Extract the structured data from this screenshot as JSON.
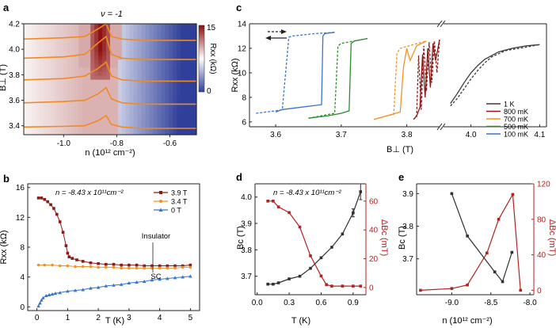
{
  "colors": {
    "axis": "#222222",
    "red_axis": "#b22222",
    "orange_trace": "#f08a24",
    "heat_low": "#2f3f9a",
    "heat_mid": "#ffffff",
    "heat_high": "#8b0d0d",
    "c_1K": "#3a3a3a",
    "c_800mK": "#8b1a1a",
    "c_700mK": "#f39223",
    "c_500mK": "#2e8b2e",
    "c_100mK": "#3a74c9",
    "b_3_9T": "#8b1a1a",
    "b_3_4T": "#f39223",
    "b_0T": "#3a74c9",
    "d_black": "#303030",
    "d_red": "#b22222"
  },
  "chart_data": [
    {
      "id": "a",
      "panel_label": "a",
      "type": "heatmap",
      "title": "ν = -1",
      "xlabel": "n (10¹² cm⁻²)",
      "ylabel": "B⊥ (T)",
      "xlim": [
        -1.15,
        -0.5
      ],
      "ylim": [
        3.33,
        4.2
      ],
      "xticks": [
        "-1.0",
        "-0.8",
        "-0.6"
      ],
      "xtick_values": [
        -1.0,
        -0.8,
        -0.6
      ],
      "yticks": [
        "3.4",
        "3.6",
        "3.8",
        "4.0",
        "4.2"
      ],
      "ytick_values": [
        3.4,
        3.6,
        3.8,
        4.0,
        4.2
      ],
      "colorbar": {
        "label": "Rxx (kΩ)",
        "min_label": "0",
        "max_label": "15",
        "range": [
          0,
          15
        ]
      },
      "traces": [
        {
          "B_offset": 3.39,
          "x": [
            -1.15,
            -1.0,
            -0.92,
            -0.87,
            -0.84,
            -0.82,
            -0.78,
            -0.7,
            -0.6,
            -0.5
          ],
          "dy": [
            0,
            0.005,
            0.01,
            0.05,
            0.09,
            0.02,
            0.0,
            -0.01,
            -0.01,
            -0.01
          ]
        },
        {
          "B_offset": 3.58,
          "x": [
            -1.15,
            -1.0,
            -0.92,
            -0.87,
            -0.84,
            -0.82,
            -0.78,
            -0.7,
            -0.6,
            -0.5
          ],
          "dy": [
            0,
            0.01,
            0.02,
            0.07,
            0.12,
            0.03,
            0.0,
            -0.01,
            -0.01,
            -0.01
          ]
        },
        {
          "B_offset": 3.76,
          "x": [
            -1.15,
            -1.0,
            -0.92,
            -0.87,
            -0.84,
            -0.82,
            -0.78,
            -0.7,
            -0.6,
            -0.5
          ],
          "dy": [
            0,
            0.01,
            0.03,
            0.09,
            0.14,
            0.03,
            0.0,
            -0.01,
            -0.01,
            -0.01
          ]
        },
        {
          "B_offset": 3.93,
          "x": [
            -1.15,
            -1.0,
            -0.92,
            -0.87,
            -0.84,
            -0.82,
            -0.78,
            -0.7,
            -0.6,
            -0.5
          ],
          "dy": [
            0,
            0.01,
            0.03,
            0.12,
            0.17,
            0.03,
            0.0,
            -0.01,
            -0.01,
            -0.01
          ]
        },
        {
          "B_offset": 4.08,
          "x": [
            -1.15,
            -1.0,
            -0.92,
            -0.87,
            -0.84,
            -0.82,
            -0.78,
            -0.7,
            -0.6,
            -0.5
          ],
          "dy": [
            0,
            0.01,
            0.02,
            0.08,
            0.12,
            0.02,
            0.0,
            -0.01,
            -0.01,
            -0.01
          ]
        }
      ]
    },
    {
      "id": "b",
      "panel_label": "b",
      "type": "scatter",
      "xlabel": "T (K)",
      "ylabel": "Rxx (kΩ)",
      "xlim": [
        -0.3,
        5.3
      ],
      "ylim": [
        -0.5,
        16.5
      ],
      "xticks": [
        "0",
        "1",
        "2",
        "3",
        "4",
        "5"
      ],
      "xtick_values": [
        0,
        1,
        2,
        3,
        4,
        5
      ],
      "yticks": [
        "0",
        "4",
        "8",
        "12",
        "16"
      ],
      "ytick_values": [
        0,
        4,
        8,
        12,
        16
      ],
      "annotation": "n = -8.43 x 10¹¹cm⁻²",
      "labels": {
        "insulator": "Insulator",
        "sc": "SC"
      },
      "legend": [
        "3.9 T",
        "3.4 T",
        "0 T"
      ],
      "series": [
        {
          "name": "3.9 T",
          "x": [
            0.05,
            0.15,
            0.25,
            0.35,
            0.45,
            0.55,
            0.65,
            0.75,
            0.85,
            0.95,
            1.0,
            1.05,
            1.15,
            1.3,
            1.5,
            1.75,
            2.0,
            2.25,
            2.5,
            2.75,
            3.0,
            3.25,
            3.5,
            3.75,
            4.0,
            4.25,
            4.5,
            4.75,
            5.0
          ],
          "y": [
            14.6,
            14.6,
            14.4,
            14.1,
            13.7,
            13.2,
            12.4,
            11.4,
            10.0,
            8.2,
            7.2,
            6.7,
            6.5,
            6.3,
            6.1,
            5.9,
            5.8,
            5.7,
            5.7,
            5.6,
            5.6,
            5.6,
            5.5,
            5.5,
            5.5,
            5.5,
            5.5,
            5.5,
            5.6
          ]
        },
        {
          "name": "3.4 T",
          "x": [
            0.05,
            0.25,
            0.5,
            0.75,
            1.0,
            1.25,
            1.5,
            1.75,
            2.0,
            2.25,
            2.5,
            2.75,
            3.0,
            3.25,
            3.5,
            3.75,
            4.0,
            4.25,
            4.5,
            4.75,
            5.0
          ],
          "y": [
            5.6,
            5.6,
            5.6,
            5.5,
            5.5,
            5.4,
            5.4,
            5.4,
            5.3,
            5.3,
            5.3,
            5.2,
            5.2,
            5.2,
            5.2,
            5.2,
            5.2,
            5.2,
            5.2,
            5.3,
            5.3
          ]
        },
        {
          "name": "0 T",
          "x": [
            0.05,
            0.1,
            0.15,
            0.2,
            0.3,
            0.4,
            0.5,
            0.6,
            0.75,
            1.0,
            1.25,
            1.5,
            1.75,
            2.0,
            2.25,
            2.5,
            2.75,
            3.0,
            3.25,
            3.5,
            3.75,
            4.0,
            4.25,
            4.5,
            4.75,
            5.0
          ],
          "y": [
            0.1,
            0.5,
            0.9,
            1.2,
            1.5,
            1.6,
            1.7,
            1.8,
            1.9,
            2.1,
            2.2,
            2.3,
            2.5,
            2.6,
            2.8,
            2.9,
            3.0,
            3.2,
            3.3,
            3.4,
            3.6,
            3.7,
            3.8,
            3.9,
            4.0,
            4.1
          ]
        }
      ]
    },
    {
      "id": "c",
      "panel_label": "c",
      "type": "line",
      "xlabel": "B⊥ (T)",
      "ylabel": "Rxx (kΩ)",
      "xlim": [
        3.56,
        4.11
      ],
      "broken_axis": [
        3.85,
        3.96
      ],
      "ylim": [
        5.6,
        14
      ],
      "xticks": [
        "3.6",
        "3.7",
        "3.8",
        "4.0",
        "4.1"
      ],
      "xtick_values": [
        3.6,
        3.7,
        3.8,
        4.0,
        4.1
      ],
      "yticks": [
        "6",
        "8",
        "10",
        "12",
        "14"
      ],
      "ytick_values": [
        6,
        8,
        10,
        12,
        14
      ],
      "legend": [
        "1 K",
        "800 mK",
        "700 mK",
        "500 mK",
        "100 mK"
      ],
      "series": [
        {
          "name": "100 mK",
          "sweep": "up",
          "x": [
            3.57,
            3.6,
            3.61,
            3.62,
            3.625,
            3.66,
            3.69
          ],
          "y": [
            6.7,
            6.9,
            7.0,
            12.9,
            13.0,
            13.2,
            13.3
          ]
        },
        {
          "name": "100 mK",
          "sweep": "down",
          "x": [
            3.69,
            3.675,
            3.672,
            3.67,
            3.64,
            3.61,
            3.6
          ],
          "y": [
            13.3,
            13.2,
            13.0,
            7.4,
            7.2,
            7.0,
            6.8
          ]
        },
        {
          "name": "500 mK",
          "sweep": "up",
          "x": [
            3.65,
            3.68,
            3.69,
            3.695,
            3.7,
            3.72,
            3.74
          ],
          "y": [
            6.3,
            6.6,
            6.7,
            12.2,
            12.4,
            12.6,
            12.8
          ]
        },
        {
          "name": "500 mK",
          "sweep": "down",
          "x": [
            3.74,
            3.72,
            3.715,
            3.712,
            3.7,
            3.68,
            3.65
          ],
          "y": [
            12.8,
            12.6,
            12.4,
            6.9,
            6.7,
            6.5,
            6.3
          ]
        },
        {
          "name": "700 mK",
          "sweep": "up",
          "x": [
            3.75,
            3.77,
            3.78,
            3.785,
            3.79,
            3.81,
            3.83
          ],
          "y": [
            6.2,
            6.5,
            6.6,
            11.6,
            12.0,
            12.3,
            12.6
          ]
        },
        {
          "name": "700 mK",
          "sweep": "down",
          "x": [
            3.83,
            3.815,
            3.805,
            3.8,
            3.795,
            3.79,
            3.77,
            3.75
          ],
          "y": [
            12.6,
            12.2,
            11.0,
            12.0,
            10.5,
            6.8,
            6.5,
            6.2
          ]
        },
        {
          "name": "800 mK",
          "sweep": "up",
          "x": [
            3.81,
            3.815,
            3.818,
            3.822,
            3.826,
            3.83,
            3.834,
            3.838,
            3.842,
            3.846,
            3.85
          ],
          "y": [
            6.2,
            6.4,
            11.4,
            7.0,
            12.2,
            8.5,
            12.5,
            9.2,
            12.6,
            10.0,
            12.7
          ]
        },
        {
          "name": "800 mK",
          "sweep": "down",
          "x": [
            3.85,
            3.844,
            3.84,
            3.836,
            3.832,
            3.828,
            3.824,
            3.82,
            3.816,
            3.812
          ],
          "y": [
            12.7,
            11.0,
            12.4,
            8.8,
            12.0,
            8.0,
            11.5,
            7.2,
            6.6,
            6.3
          ]
        },
        {
          "name": "1 K",
          "sweep": "up",
          "x": [
            3.97,
            3.98,
            3.99,
            4.0,
            4.01,
            4.02,
            4.03,
            4.05,
            4.07,
            4.09,
            4.1
          ],
          "y": [
            7.3,
            7.9,
            8.7,
            9.5,
            10.2,
            10.8,
            11.3,
            11.8,
            12.0,
            12.2,
            12.3
          ]
        },
        {
          "name": "1 K",
          "sweep": "down",
          "x": [
            4.1,
            4.08,
            4.06,
            4.04,
            4.02,
            4.01,
            4.0,
            3.99,
            3.98,
            3.97
          ],
          "y": [
            12.3,
            12.2,
            12.0,
            11.7,
            11.1,
            10.6,
            10.0,
            9.2,
            8.3,
            7.5
          ]
        }
      ]
    },
    {
      "id": "d",
      "panel_label": "d",
      "type": "line",
      "xlabel": "T (K)",
      "ylabel_left": "Bc (T)",
      "ylabel_right": "ΔBc (mT)",
      "annotation": "n = -8.43 x 10¹¹cm⁻²",
      "xlim": [
        -0.02,
        1.02
      ],
      "ylim_left": [
        3.63,
        4.05
      ],
      "ylim_right": [
        -5,
        72
      ],
      "xticks": [
        "0.0",
        "0.3",
        "0.6",
        "0.9"
      ],
      "xtick_values": [
        0.0,
        0.3,
        0.6,
        0.9
      ],
      "yticks_left": [
        "3.7",
        "3.8",
        "3.9",
        "4.0"
      ],
      "ytick_values_left": [
        3.7,
        3.8,
        3.9,
        4.0
      ],
      "yticks_right": [
        "0",
        "20",
        "40",
        "60"
      ],
      "ytick_values_right": [
        0,
        20,
        40,
        60
      ],
      "series": [
        {
          "name": "Bc",
          "axis": "left",
          "x": [
            0.1,
            0.15,
            0.2,
            0.3,
            0.4,
            0.5,
            0.6,
            0.7,
            0.8,
            0.9,
            0.97
          ],
          "y": [
            3.67,
            3.67,
            3.675,
            3.69,
            3.7,
            3.73,
            3.77,
            3.81,
            3.86,
            3.94,
            4.02
          ]
        },
        {
          "name": "ΔBc",
          "axis": "right",
          "x": [
            0.1,
            0.15,
            0.2,
            0.3,
            0.4,
            0.5,
            0.6,
            0.65,
            0.7,
            0.8,
            0.9,
            0.97
          ],
          "y": [
            60,
            60,
            56,
            52,
            42,
            22,
            8,
            2,
            1,
            1,
            1,
            1
          ]
        }
      ]
    },
    {
      "id": "e",
      "panel_label": "e",
      "type": "line",
      "xlabel": "n (10¹² cm⁻²)",
      "ylabel_left": "Bc (T)",
      "ylabel_right": "ΔBc (mT)",
      "xlim": [
        -9.45,
        -7.95
      ],
      "ylim_left": [
        3.59,
        3.93
      ],
      "ylim_right": [
        -5,
        120
      ],
      "xticks": [
        "-9.0",
        "-8.5",
        "-8.0"
      ],
      "xtick_values": [
        -9.0,
        -8.5,
        -8.0
      ],
      "yticks_left": [
        "3.7",
        "3.8",
        "3.9"
      ],
      "ytick_values_left": [
        3.7,
        3.8,
        3.9
      ],
      "yticks_right": [
        "0",
        "40",
        "80",
        "120"
      ],
      "ytick_values_right": [
        0,
        40,
        80,
        120
      ],
      "series": [
        {
          "name": "Bc",
          "axis": "left",
          "x": [
            -9.0,
            -8.8,
            -8.45,
            -8.35,
            -8.23
          ],
          "y": [
            3.9,
            3.77,
            3.66,
            3.63,
            3.72
          ]
        },
        {
          "name": "ΔBc",
          "axis": "right",
          "x": [
            -9.4,
            -9.0,
            -8.8,
            -8.55,
            -8.4,
            -8.22,
            -8.12
          ],
          "y": [
            0,
            2,
            6,
            42,
            80,
            108,
            0
          ]
        }
      ]
    }
  ]
}
